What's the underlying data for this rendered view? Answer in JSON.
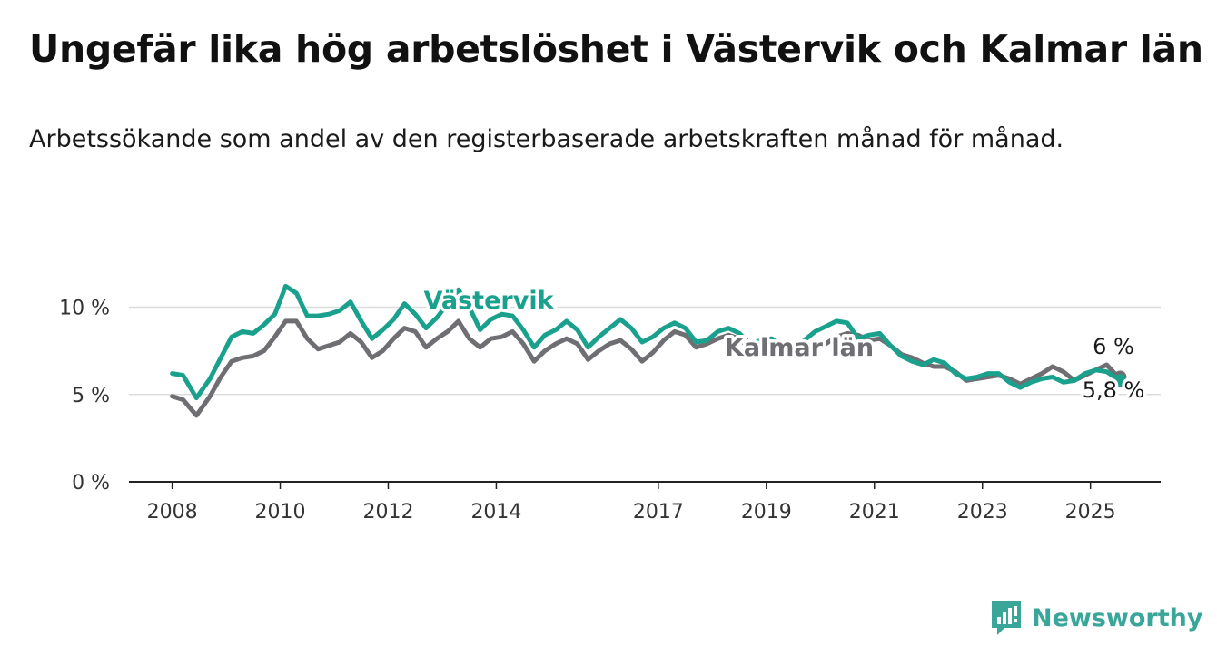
{
  "title": "Ungefär lika hög arbetslöshet i Västervik och Kalmar län",
  "subtitle": "Arbetssökande som andel av den registerbaserade arbetskraften månad för månad.",
  "brand": {
    "name": "Newsworthy",
    "color": "#3aa69a",
    "icon": "bar-chart-flag-icon"
  },
  "chart_data": {
    "type": "line",
    "y_ticks": [
      0,
      5,
      10
    ],
    "y_tick_labels": [
      "0 %",
      "5 %",
      "10 %"
    ],
    "x_ticks": [
      2008,
      2010,
      2012,
      2014,
      2017,
      2019,
      2021,
      2023,
      2025
    ],
    "xlim": [
      2007.2,
      2026.3
    ],
    "ylim": [
      0,
      12
    ],
    "grid": true,
    "series": [
      {
        "name": "Kalmar län",
        "color": "#6f6e73",
        "end_label": "6 %",
        "points": [
          [
            2008.0,
            4.9
          ],
          [
            2008.2,
            4.7
          ],
          [
            2008.45,
            3.8
          ],
          [
            2008.7,
            4.9
          ],
          [
            2008.9,
            6.0
          ],
          [
            2009.1,
            6.9
          ],
          [
            2009.3,
            7.1
          ],
          [
            2009.5,
            7.2
          ],
          [
            2009.7,
            7.5
          ],
          [
            2009.9,
            8.3
          ],
          [
            2010.1,
            9.2
          ],
          [
            2010.3,
            9.2
          ],
          [
            2010.5,
            8.2
          ],
          [
            2010.7,
            7.6
          ],
          [
            2010.9,
            7.8
          ],
          [
            2011.1,
            8.0
          ],
          [
            2011.3,
            8.5
          ],
          [
            2011.5,
            8.0
          ],
          [
            2011.7,
            7.1
          ],
          [
            2011.9,
            7.5
          ],
          [
            2012.1,
            8.2
          ],
          [
            2012.3,
            8.8
          ],
          [
            2012.5,
            8.6
          ],
          [
            2012.7,
            7.7
          ],
          [
            2012.9,
            8.2
          ],
          [
            2013.1,
            8.6
          ],
          [
            2013.3,
            9.2
          ],
          [
            2013.5,
            8.2
          ],
          [
            2013.7,
            7.7
          ],
          [
            2013.9,
            8.2
          ],
          [
            2014.1,
            8.3
          ],
          [
            2014.3,
            8.6
          ],
          [
            2014.5,
            7.9
          ],
          [
            2014.7,
            6.9
          ],
          [
            2014.9,
            7.5
          ],
          [
            2015.1,
            7.9
          ],
          [
            2015.3,
            8.2
          ],
          [
            2015.5,
            7.9
          ],
          [
            2015.7,
            7.0
          ],
          [
            2015.9,
            7.5
          ],
          [
            2016.1,
            7.9
          ],
          [
            2016.3,
            8.1
          ],
          [
            2016.5,
            7.6
          ],
          [
            2016.7,
            6.9
          ],
          [
            2016.9,
            7.4
          ],
          [
            2017.1,
            8.1
          ],
          [
            2017.3,
            8.6
          ],
          [
            2017.5,
            8.4
          ],
          [
            2017.7,
            7.7
          ],
          [
            2017.9,
            7.9
          ],
          [
            2018.1,
            8.2
          ],
          [
            2018.3,
            8.4
          ],
          [
            2018.5,
            8.2
          ],
          [
            2018.7,
            7.6
          ],
          [
            2018.9,
            7.7
          ],
          [
            2019.1,
            7.9
          ],
          [
            2019.3,
            7.4
          ],
          [
            2019.5,
            7.3
          ],
          [
            2019.7,
            7.6
          ],
          [
            2019.9,
            7.8
          ],
          [
            2020.1,
            7.9
          ],
          [
            2020.3,
            8.3
          ],
          [
            2020.5,
            8.5
          ],
          [
            2020.7,
            8.4
          ],
          [
            2020.9,
            8.1
          ],
          [
            2021.1,
            8.2
          ],
          [
            2021.3,
            7.8
          ],
          [
            2021.5,
            7.3
          ],
          [
            2021.7,
            7.1
          ],
          [
            2021.9,
            6.8
          ],
          [
            2022.1,
            6.6
          ],
          [
            2022.3,
            6.6
          ],
          [
            2022.5,
            6.3
          ],
          [
            2022.7,
            5.8
          ],
          [
            2022.9,
            5.9
          ],
          [
            2023.1,
            6.0
          ],
          [
            2023.3,
            6.1
          ],
          [
            2023.5,
            5.9
          ],
          [
            2023.7,
            5.6
          ],
          [
            2023.9,
            5.9
          ],
          [
            2024.1,
            6.2
          ],
          [
            2024.3,
            6.6
          ],
          [
            2024.5,
            6.3
          ],
          [
            2024.7,
            5.8
          ],
          [
            2024.9,
            6.1
          ],
          [
            2025.1,
            6.4
          ],
          [
            2025.3,
            6.7
          ],
          [
            2025.45,
            6.2
          ],
          [
            2025.55,
            6.0
          ]
        ]
      },
      {
        "name": "Västervik",
        "color": "#1aa18e",
        "end_label": "5,8 %",
        "points": [
          [
            2008.0,
            6.2
          ],
          [
            2008.2,
            6.1
          ],
          [
            2008.45,
            4.8
          ],
          [
            2008.7,
            5.9
          ],
          [
            2008.9,
            7.1
          ],
          [
            2009.1,
            8.3
          ],
          [
            2009.3,
            8.6
          ],
          [
            2009.5,
            8.5
          ],
          [
            2009.7,
            9.0
          ],
          [
            2009.9,
            9.6
          ],
          [
            2010.1,
            11.2
          ],
          [
            2010.3,
            10.8
          ],
          [
            2010.5,
            9.5
          ],
          [
            2010.7,
            9.5
          ],
          [
            2010.9,
            9.6
          ],
          [
            2011.1,
            9.8
          ],
          [
            2011.3,
            10.3
          ],
          [
            2011.5,
            9.2
          ],
          [
            2011.7,
            8.2
          ],
          [
            2011.9,
            8.7
          ],
          [
            2012.1,
            9.3
          ],
          [
            2012.3,
            10.2
          ],
          [
            2012.5,
            9.6
          ],
          [
            2012.7,
            8.8
          ],
          [
            2012.9,
            9.4
          ],
          [
            2013.1,
            10.2
          ],
          [
            2013.3,
            11.0
          ],
          [
            2013.5,
            10.0
          ],
          [
            2013.7,
            8.7
          ],
          [
            2013.9,
            9.3
          ],
          [
            2014.1,
            9.6
          ],
          [
            2014.3,
            9.5
          ],
          [
            2014.5,
            8.7
          ],
          [
            2014.7,
            7.7
          ],
          [
            2014.9,
            8.4
          ],
          [
            2015.1,
            8.7
          ],
          [
            2015.3,
            9.2
          ],
          [
            2015.5,
            8.7
          ],
          [
            2015.7,
            7.7
          ],
          [
            2015.9,
            8.3
          ],
          [
            2016.1,
            8.8
          ],
          [
            2016.3,
            9.3
          ],
          [
            2016.5,
            8.8
          ],
          [
            2016.7,
            8.0
          ],
          [
            2016.9,
            8.3
          ],
          [
            2017.1,
            8.8
          ],
          [
            2017.3,
            9.1
          ],
          [
            2017.5,
            8.8
          ],
          [
            2017.7,
            8.0
          ],
          [
            2017.9,
            8.1
          ],
          [
            2018.1,
            8.6
          ],
          [
            2018.3,
            8.8
          ],
          [
            2018.5,
            8.5
          ],
          [
            2018.7,
            7.9
          ],
          [
            2018.9,
            8.1
          ],
          [
            2019.1,
            8.2
          ],
          [
            2019.3,
            7.7
          ],
          [
            2019.5,
            7.6
          ],
          [
            2019.7,
            8.1
          ],
          [
            2019.9,
            8.6
          ],
          [
            2020.1,
            8.9
          ],
          [
            2020.3,
            9.2
          ],
          [
            2020.5,
            9.1
          ],
          [
            2020.7,
            8.2
          ],
          [
            2020.9,
            8.4
          ],
          [
            2021.1,
            8.5
          ],
          [
            2021.3,
            7.8
          ],
          [
            2021.5,
            7.2
          ],
          [
            2021.7,
            6.9
          ],
          [
            2021.9,
            6.7
          ],
          [
            2022.1,
            7.0
          ],
          [
            2022.3,
            6.8
          ],
          [
            2022.5,
            6.2
          ],
          [
            2022.7,
            5.9
          ],
          [
            2022.9,
            6.0
          ],
          [
            2023.1,
            6.2
          ],
          [
            2023.3,
            6.2
          ],
          [
            2023.5,
            5.7
          ],
          [
            2023.7,
            5.4
          ],
          [
            2023.9,
            5.7
          ],
          [
            2024.1,
            5.9
          ],
          [
            2024.3,
            6.0
          ],
          [
            2024.5,
            5.7
          ],
          [
            2024.7,
            5.8
          ],
          [
            2024.9,
            6.2
          ],
          [
            2025.1,
            6.4
          ],
          [
            2025.3,
            6.3
          ],
          [
            2025.45,
            6.0
          ],
          [
            2025.55,
            5.8
          ]
        ]
      }
    ]
  }
}
